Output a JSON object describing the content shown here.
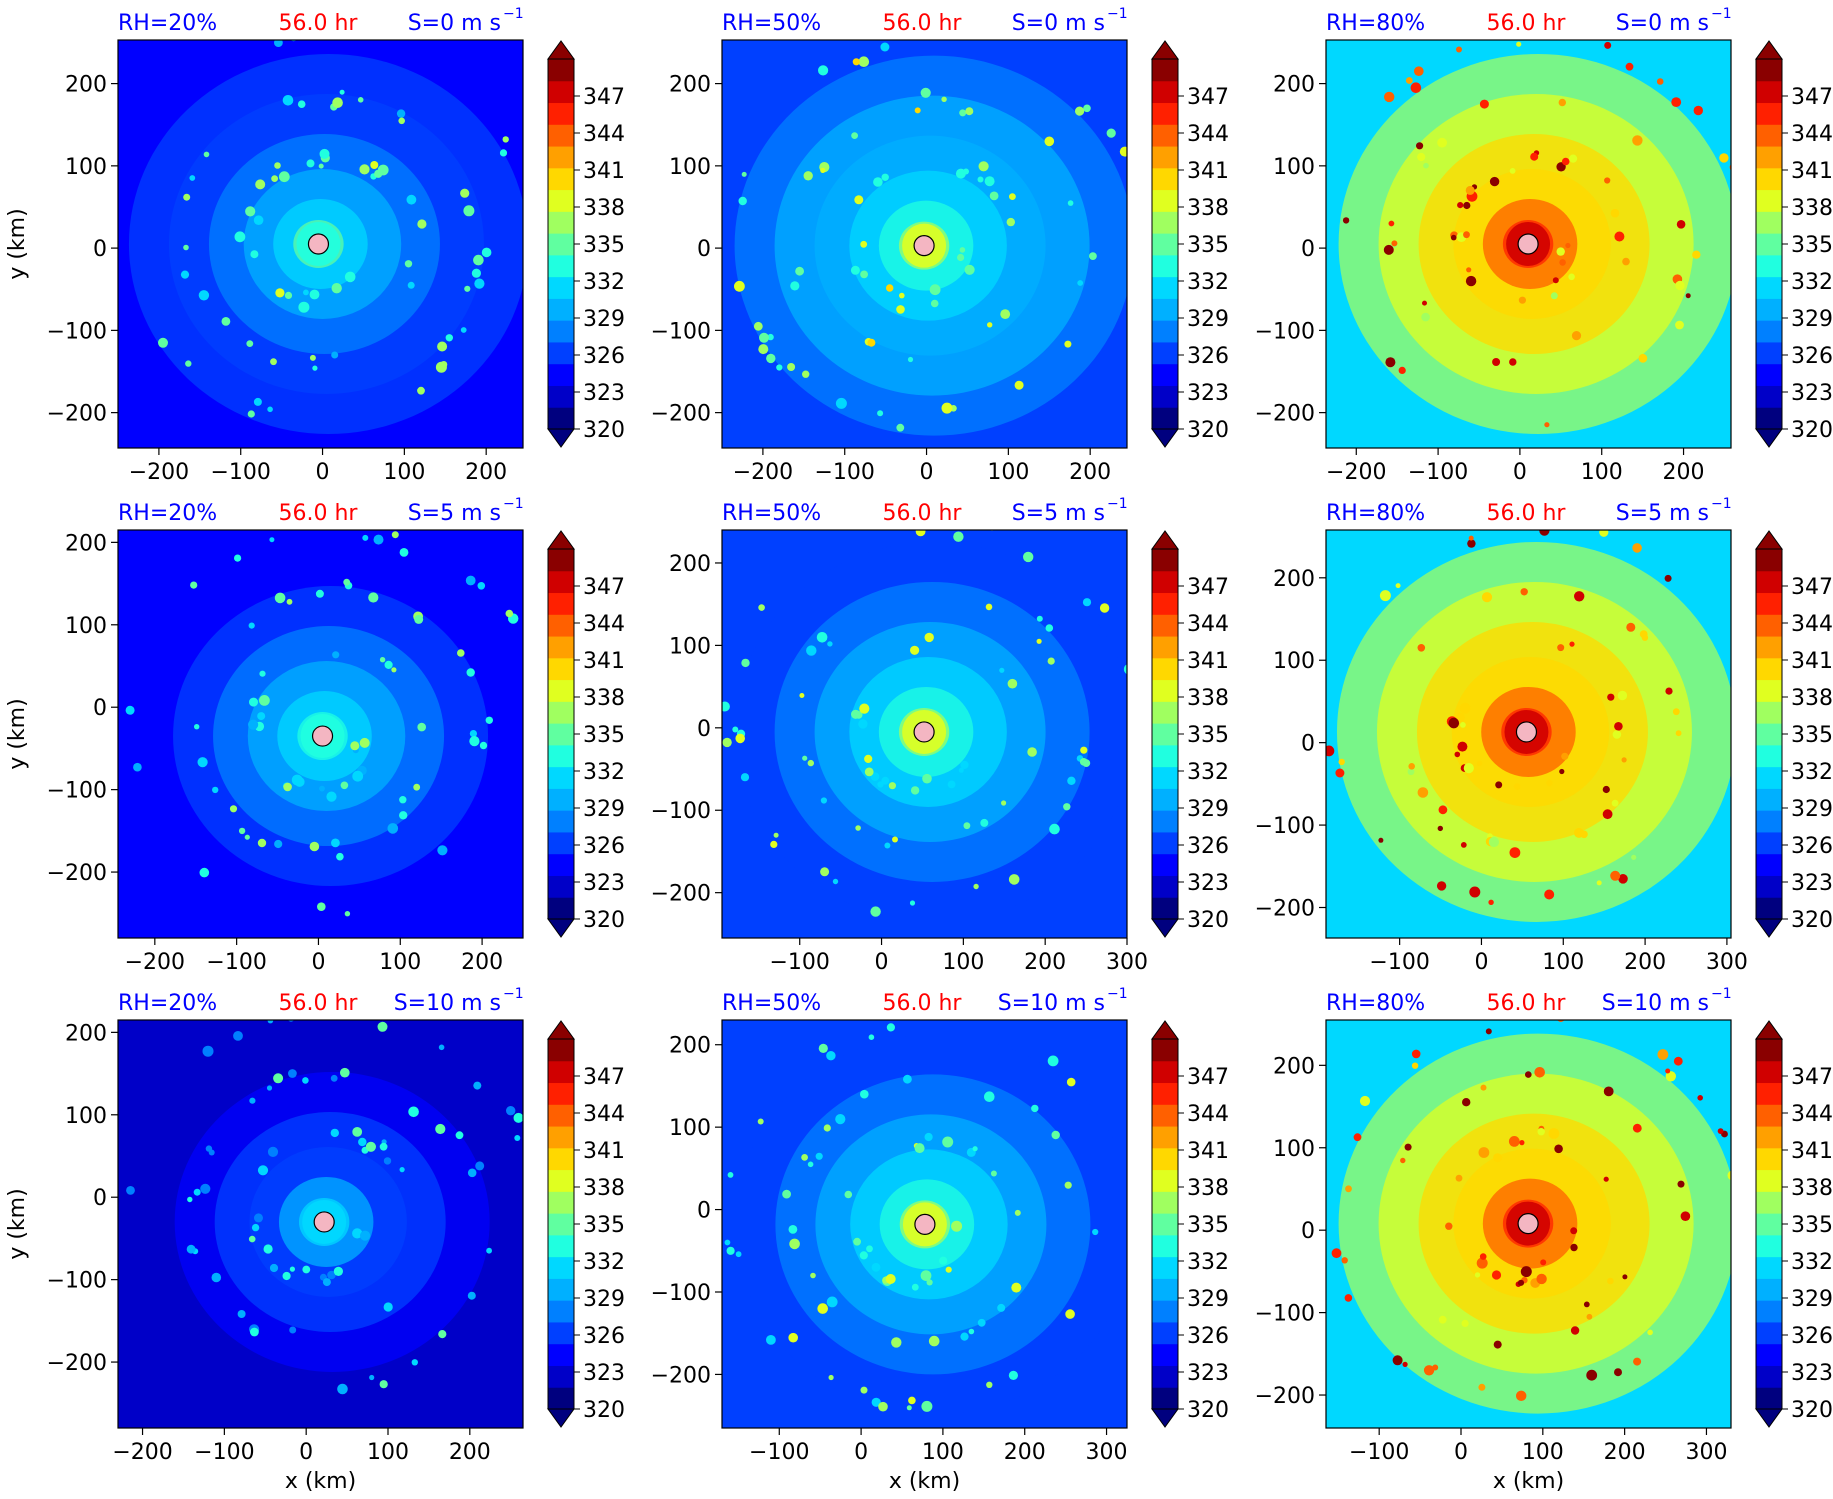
{
  "figure": {
    "units_label": "m s",
    "units_exp": "−1",
    "hr_color": "#ff0000",
    "label_color": "#0000ff",
    "center_marker_color": "#f4b6c2"
  },
  "colorbar": {
    "ticks": [
      "347",
      "344",
      "341",
      "338",
      "335",
      "332",
      "329",
      "326",
      "323",
      "320"
    ],
    "tick_values": [
      347,
      344,
      341,
      338,
      335,
      332,
      329,
      326,
      323,
      320
    ],
    "min": 320,
    "max": 350,
    "colors": [
      "#00007f",
      "#0000c8",
      "#0000ff",
      "#0040ff",
      "#0080ff",
      "#00b0ff",
      "#00d8ff",
      "#20ffe0",
      "#60ffa0",
      "#a0ff60",
      "#e0ff20",
      "#ffd800",
      "#ffa000",
      "#ff6000",
      "#ff2000",
      "#d00000",
      "#8a0000"
    ]
  },
  "chart_data": [
    {
      "type": "heatmap",
      "rh": "RH=20%",
      "time": "56.0 hr",
      "shear": "S=0",
      "xlabel": "",
      "ylabel": "y (km)",
      "xticks": [
        "−200",
        "−100",
        "0",
        "100",
        "200"
      ],
      "yticks": [
        "200",
        "100",
        "0",
        "−100",
        "−200"
      ],
      "xlim": [
        -250,
        245
      ],
      "ylim": [
        -243,
        253
      ],
      "center": [
        -5,
        5
      ],
      "env_level": 325
    },
    {
      "type": "heatmap",
      "rh": "RH=50%",
      "time": "56.0 hr",
      "shear": "S=0",
      "xlabel": "",
      "ylabel": "",
      "xticks": [
        "−200",
        "−100",
        "0",
        "100",
        "200"
      ],
      "yticks": [
        "200",
        "100",
        "0",
        "−100",
        "−200"
      ],
      "xlim": [
        -250,
        245
      ],
      "ylim": [
        -243,
        253
      ],
      "center": [
        -3,
        3
      ],
      "env_level": 327
    },
    {
      "type": "heatmap",
      "rh": "RH=80%",
      "time": "56.0 hr",
      "shear": "S=0",
      "xlabel": "",
      "ylabel": "",
      "xticks": [
        "−200",
        "−100",
        "0",
        "100",
        "200"
      ],
      "yticks": [
        "200",
        "100",
        "0",
        "−100",
        "−200"
      ],
      "xlim": [
        -237,
        258
      ],
      "ylim": [
        -243,
        253
      ],
      "center": [
        10,
        5
      ],
      "env_level": 332
    },
    {
      "type": "heatmap",
      "rh": "RH=20%",
      "time": "56.0 hr",
      "shear": "S=5",
      "xlabel": "",
      "ylabel": "y (km)",
      "xticks": [
        "−200",
        "−100",
        "0",
        "100",
        "200"
      ],
      "yticks": [
        "200",
        "100",
        "0",
        "−100",
        "−200"
      ],
      "xlim": [
        -245,
        250
      ],
      "ylim": [
        -280,
        215
      ],
      "center": [
        5,
        -35
      ],
      "env_level": 324
    },
    {
      "type": "heatmap",
      "rh": "RH=50%",
      "time": "56.0 hr",
      "shear": "S=5",
      "xlabel": "",
      "ylabel": "",
      "xticks": [
        "−100",
        "0",
        "100",
        "200",
        "300"
      ],
      "yticks": [
        "200",
        "100",
        "0",
        "−100",
        "−200"
      ],
      "xlim": [
        -195,
        300
      ],
      "ylim": [
        -255,
        240
      ],
      "center": [
        52,
        -5
      ],
      "env_level": 326
    },
    {
      "type": "heatmap",
      "rh": "RH=80%",
      "time": "56.0 hr",
      "shear": "S=5",
      "xlabel": "",
      "ylabel": "",
      "xticks": [
        "−100",
        "0",
        "100",
        "200",
        "300"
      ],
      "yticks": [
        "200",
        "100",
        "0",
        "−100",
        "−200"
      ],
      "xlim": [
        -190,
        305
      ],
      "ylim": [
        -237,
        258
      ],
      "center": [
        55,
        13
      ],
      "env_level": 332
    },
    {
      "type": "heatmap",
      "rh": "RH=20%",
      "time": "56.0 hr",
      "shear": "S=10",
      "xlabel": "x (km)",
      "ylabel": "y (km)",
      "xticks": [
        "−200",
        "−100",
        "0",
        "100",
        "200"
      ],
      "yticks": [
        "200",
        "100",
        "0",
        "−100",
        "−200"
      ],
      "xlim": [
        -230,
        265
      ],
      "ylim": [
        -280,
        215
      ],
      "center": [
        22,
        -30
      ],
      "env_level": 322
    },
    {
      "type": "heatmap",
      "rh": "RH=50%",
      "time": "56.0 hr",
      "shear": "S=10",
      "xlabel": "x (km)",
      "ylabel": "",
      "xticks": [
        "−100",
        "0",
        "100",
        "200",
        "300"
      ],
      "yticks": [
        "200",
        "100",
        "0",
        "−100",
        "−200"
      ],
      "xlim": [
        -170,
        325
      ],
      "ylim": [
        -265,
        230
      ],
      "center": [
        78,
        -18
      ],
      "env_level": 326
    },
    {
      "type": "heatmap",
      "rh": "RH=80%",
      "time": "56.0 hr",
      "shear": "S=10",
      "xlabel": "x (km)",
      "ylabel": "",
      "xticks": [
        "−100",
        "0",
        "100",
        "200",
        "300"
      ],
      "yticks": [
        "200",
        "100",
        "0",
        "−100",
        "−200"
      ],
      "xlim": [
        -165,
        330
      ],
      "ylim": [
        -240,
        255
      ],
      "center": [
        82,
        8
      ],
      "env_level": 332
    }
  ]
}
